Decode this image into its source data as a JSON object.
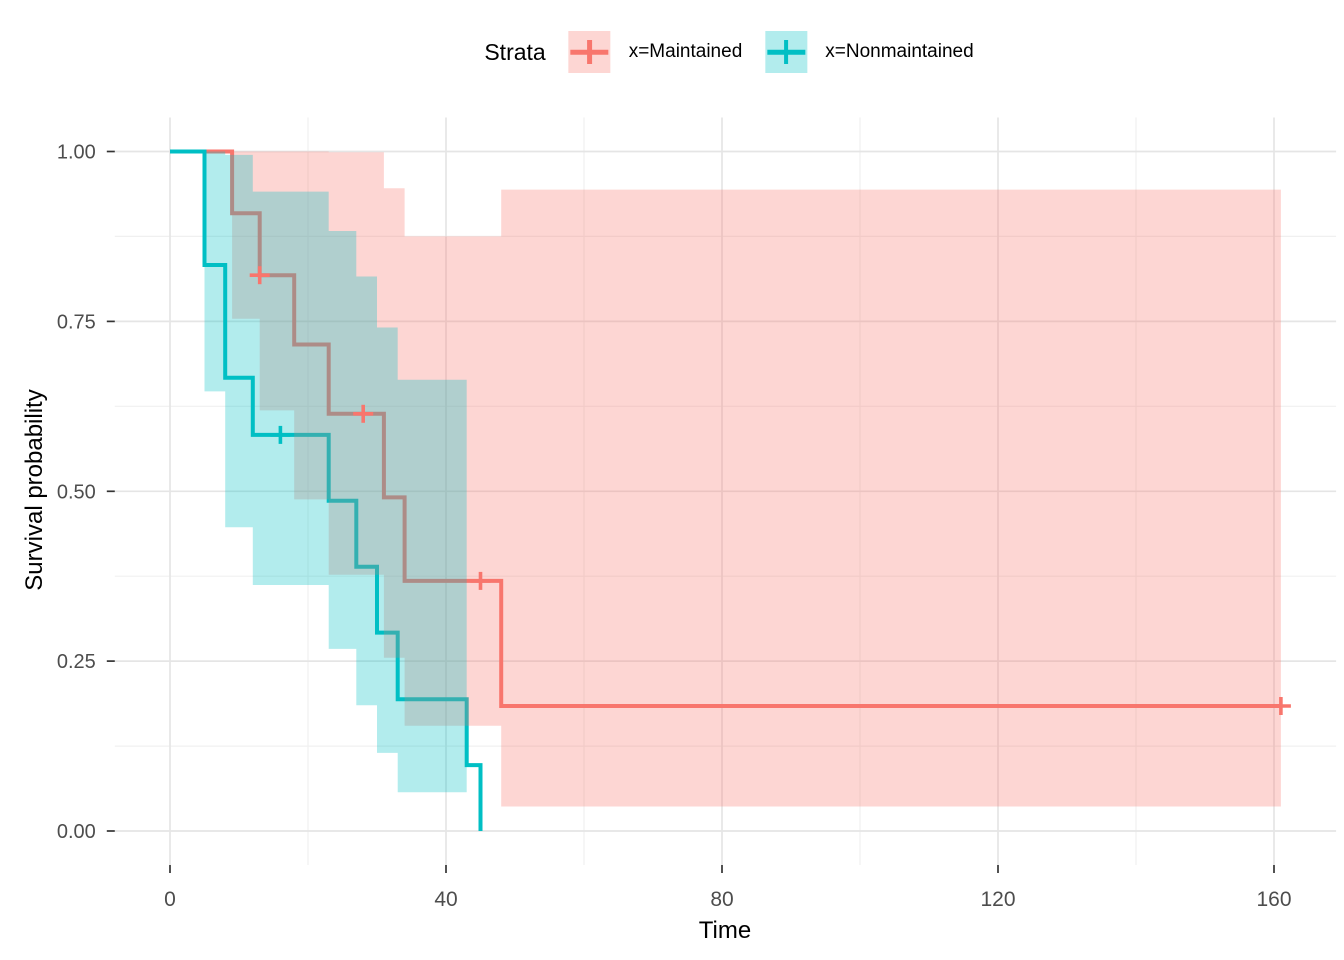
{
  "chart_data": {
    "type": "line",
    "subtype": "kaplan-meier-step-with-ci-ribbons",
    "xlabel": "Time",
    "ylabel": "Survival probability",
    "xlim": [
      -8,
      169
    ],
    "ylim": [
      -0.05,
      1.05
    ],
    "grid": true,
    "x_major_ticks": [
      {
        "value": 0,
        "label": "0"
      },
      {
        "value": 40,
        "label": "40"
      },
      {
        "value": 80,
        "label": "80"
      },
      {
        "value": 120,
        "label": "120"
      },
      {
        "value": 160,
        "label": "160"
      }
    ],
    "x_minor_ticks": [
      20,
      60,
      100,
      140
    ],
    "y_major_ticks": [
      {
        "value": 0,
        "label": "0.00"
      },
      {
        "value": 0.25,
        "label": "0.25"
      },
      {
        "value": 0.5,
        "label": "0.50"
      },
      {
        "value": 0.75,
        "label": "0.75"
      },
      {
        "value": 1,
        "label": "1.00"
      }
    ],
    "y_minor_ticks": [
      0.125,
      0.375,
      0.625,
      0.875
    ],
    "legend": {
      "title": "Strata",
      "position": "top"
    },
    "colors": {
      "panel_bg": "#FFFFFF",
      "grid_major": "#E5E5E5",
      "grid_minor": "#F0F0F0",
      "tick": "#333333",
      "axis_text": "#4D4D4D",
      "axis_title": "#000000"
    },
    "series": [
      {
        "id": "maintained",
        "name": "x=Maintained",
        "color": "#F8766D",
        "ci_alpha": 0.3,
        "steps": [
          [
            0,
            1.0
          ],
          [
            9,
            0.909
          ],
          [
            13,
            0.818
          ],
          [
            18,
            0.716
          ],
          [
            23,
            0.614
          ],
          [
            31,
            0.491
          ],
          [
            34,
            0.368
          ],
          [
            48,
            0.184
          ]
        ],
        "end_time": 161,
        "censored": [
          [
            13,
            0.818
          ],
          [
            28,
            0.614
          ],
          [
            45,
            0.368
          ],
          [
            161,
            0.184
          ]
        ],
        "ci_steps": [
          [
            9,
            1.0,
            0.754
          ],
          [
            13,
            1.0,
            0.619
          ],
          [
            18,
            1.0,
            0.488
          ],
          [
            23,
            0.999,
            0.377
          ],
          [
            31,
            0.946,
            0.255
          ],
          [
            34,
            0.875,
            0.155
          ],
          [
            48,
            0.944,
            0.036
          ]
        ],
        "ci_end_time": 161
      },
      {
        "id": "nonmaintained",
        "name": "x=Nonmaintained",
        "color": "#00BFC4",
        "ci_alpha": 0.3,
        "steps": [
          [
            0,
            1.0
          ],
          [
            5,
            0.833
          ],
          [
            8,
            0.667
          ],
          [
            12,
            0.583
          ],
          [
            23,
            0.486
          ],
          [
            27,
            0.389
          ],
          [
            30,
            0.292
          ],
          [
            33,
            0.194
          ],
          [
            43,
            0.097
          ],
          [
            45,
            0.0
          ]
        ],
        "end_time": 45,
        "censored": [
          [
            16,
            0.583
          ]
        ],
        "ci_steps": [
          [
            5,
            1.0,
            0.647
          ],
          [
            8,
            0.995,
            0.447
          ],
          [
            12,
            0.941,
            0.362
          ],
          [
            23,
            0.883,
            0.268
          ],
          [
            27,
            0.816,
            0.185
          ],
          [
            30,
            0.741,
            0.115
          ],
          [
            33,
            0.664,
            0.057
          ]
        ],
        "ci_end_time": 43
      }
    ]
  }
}
